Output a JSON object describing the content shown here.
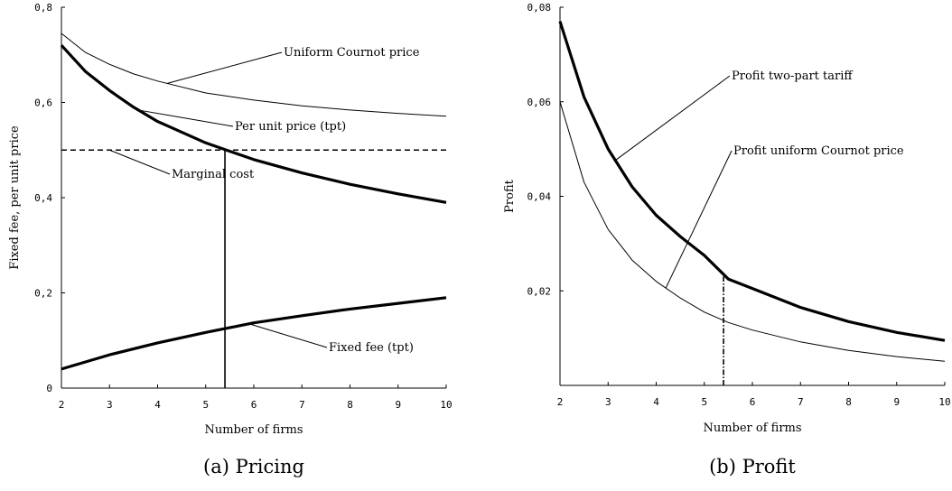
{
  "chart_data": [
    {
      "type": "line",
      "caption": "(a) Pricing",
      "xlabel": "Number of firms",
      "ylabel": "Fixed fee, per unit price",
      "xlim": [
        2,
        10
      ],
      "ylim": [
        0,
        0.8
      ],
      "x_ticks": [
        "2",
        "3",
        "4",
        "5",
        "6",
        "7",
        "8",
        "9",
        "10"
      ],
      "y_ticks": [
        "0",
        "0,2",
        "0,4",
        "0,6",
        "0,8"
      ],
      "grid": false,
      "series": [
        {
          "name": "Uniform Cournot price",
          "weight": "thin",
          "x": [
            2,
            2.5,
            3,
            3.5,
            4,
            5,
            6,
            7,
            8,
            9,
            10
          ],
          "y": [
            0.745,
            0.705,
            0.68,
            0.66,
            0.645,
            0.62,
            0.605,
            0.593,
            0.584,
            0.577,
            0.571
          ]
        },
        {
          "name": "Per unit price (tpt)",
          "weight": "thick",
          "x": [
            2,
            2.5,
            3,
            3.5,
            4,
            5,
            6,
            7,
            8,
            9,
            10
          ],
          "y": [
            0.72,
            0.665,
            0.625,
            0.59,
            0.56,
            0.515,
            0.48,
            0.452,
            0.428,
            0.408,
            0.39
          ]
        },
        {
          "name": "Marginal cost",
          "weight": "dashed",
          "x": [
            2,
            10
          ],
          "y": [
            0.5,
            0.5
          ]
        },
        {
          "name": "Fixed fee (tpt)",
          "weight": "thick",
          "x": [
            2,
            3,
            4,
            5,
            6,
            7,
            8,
            9,
            10
          ],
          "y": [
            0.04,
            0.07,
            0.095,
            0.117,
            0.137,
            0.152,
            0.166,
            0.178,
            0.19
          ]
        }
      ],
      "reference_line": {
        "x": 5.4,
        "y_from": 0,
        "y_to": 0.5,
        "style": "solid"
      },
      "annotations": [
        {
          "text": "Uniform Cournot price",
          "target_series": 0,
          "anchor_x": 4.2
        },
        {
          "text": "Per unit price (tpt)",
          "target_series": 1,
          "anchor_x": 3.6
        },
        {
          "text": "Marginal cost",
          "target_series": 2,
          "anchor_x": 3.0
        },
        {
          "text": "Fixed fee (tpt)",
          "target_series": 3,
          "anchor_x": 5.9
        }
      ]
    },
    {
      "type": "line",
      "caption": "(b) Profit",
      "xlabel": "Number of firms",
      "ylabel": "Profit",
      "xlim": [
        2,
        10
      ],
      "ylim": [
        0,
        0.08
      ],
      "x_ticks": [
        "2",
        "3",
        "4",
        "5",
        "6",
        "7",
        "8",
        "9",
        "10"
      ],
      "y_ticks": [
        "0,02",
        "0,04",
        "0,06",
        "0,08"
      ],
      "grid": false,
      "series": [
        {
          "name": "Profit two-part tariff",
          "weight": "thick",
          "x": [
            2,
            2.5,
            3,
            3.5,
            4,
            4.5,
            5,
            5.5,
            6,
            7,
            8,
            9,
            10
          ],
          "y": [
            0.077,
            0.061,
            0.05,
            0.042,
            0.036,
            0.0315,
            0.0275,
            0.0225,
            0.0205,
            0.0165,
            0.0135,
            0.0112,
            0.0095
          ]
        },
        {
          "name": "Profit uniform Cournot price",
          "weight": "thin",
          "x": [
            2,
            2.5,
            3,
            3.5,
            4,
            4.5,
            5,
            5.5,
            6,
            7,
            8,
            9,
            10
          ],
          "y": [
            0.06,
            0.043,
            0.033,
            0.0265,
            0.022,
            0.0185,
            0.0155,
            0.0133,
            0.0117,
            0.0092,
            0.0074,
            0.0061,
            0.0051
          ]
        }
      ],
      "reference_line": {
        "x": 5.4,
        "y_from": 0,
        "y_to": 0.023,
        "style": "dash-dot"
      },
      "annotations": [
        {
          "text": "Profit two-part tariff",
          "target_series": 0,
          "anchor_x": 3.15
        },
        {
          "text": "Profit uniform Cournot price",
          "target_series": 1,
          "anchor_x": 4.2
        }
      ]
    }
  ]
}
